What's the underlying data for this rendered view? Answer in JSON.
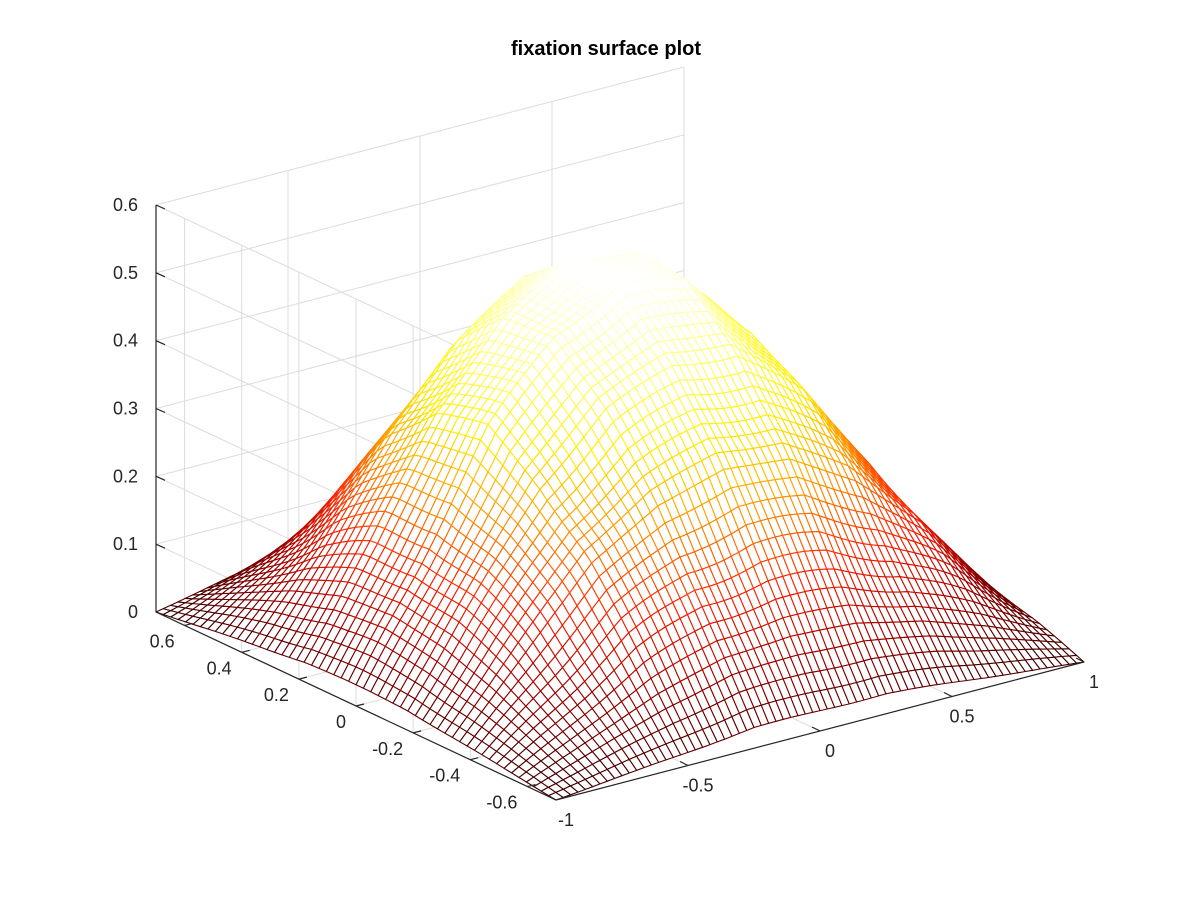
{
  "chart_data": {
    "type": "surface",
    "title": "fixation surface plot",
    "xlabel": "",
    "ylabel": "",
    "zlabel": "",
    "grid": true,
    "colormap": "hot",
    "colormap_stops": [
      "#3a0000",
      "#9e0000",
      "#ff2000",
      "#ff9000",
      "#ffee00",
      "#ffff80",
      "#ffffff"
    ],
    "xlim": [
      -1,
      1
    ],
    "ylim": [
      -0.7,
      0.7
    ],
    "zlim": [
      0,
      0.6
    ],
    "x_ticks": [
      -1,
      -0.5,
      0,
      0.5,
      1
    ],
    "x_tick_labels": [
      "-1",
      "-0.5",
      "0",
      "0.5",
      "1"
    ],
    "y_ticks": [
      -0.6,
      -0.4,
      -0.2,
      0,
      0.2,
      0.4,
      0.6
    ],
    "y_tick_labels": [
      "-0.6",
      "-0.4",
      "-0.2",
      "0",
      "0.2",
      "0.4",
      "0.6"
    ],
    "z_ticks": [
      0,
      0.1,
      0.2,
      0.3,
      0.4,
      0.5,
      0.6
    ],
    "z_tick_labels": [
      "0",
      "0.1",
      "0.2",
      "0.3",
      "0.4",
      "0.5",
      "0.6"
    ],
    "surface": {
      "x": [
        -1,
        -0.75,
        -0.5,
        -0.25,
        0,
        0.25,
        0.5,
        0.75,
        1
      ],
      "y": [
        -0.7,
        -0.525,
        -0.35,
        -0.175,
        0,
        0.175,
        0.35,
        0.525,
        0.7
      ],
      "z": [
        [
          0.0,
          0.01,
          0.02,
          0.03,
          0.03,
          0.03,
          0.02,
          0.01,
          0.0
        ],
        [
          0.01,
          0.07,
          0.13,
          0.17,
          0.18,
          0.17,
          0.14,
          0.09,
          0.03
        ],
        [
          0.02,
          0.13,
          0.24,
          0.3,
          0.33,
          0.32,
          0.26,
          0.17,
          0.05
        ],
        [
          0.03,
          0.17,
          0.31,
          0.4,
          0.44,
          0.43,
          0.35,
          0.22,
          0.06
        ],
        [
          0.03,
          0.19,
          0.36,
          0.47,
          0.52,
          0.5,
          0.4,
          0.25,
          0.07
        ],
        [
          0.03,
          0.18,
          0.35,
          0.46,
          0.52,
          0.51,
          0.42,
          0.26,
          0.07
        ],
        [
          0.02,
          0.14,
          0.28,
          0.39,
          0.46,
          0.46,
          0.38,
          0.23,
          0.06
        ],
        [
          0.01,
          0.08,
          0.16,
          0.24,
          0.29,
          0.29,
          0.24,
          0.14,
          0.04
        ],
        [
          0.0,
          0.02,
          0.04,
          0.06,
          0.07,
          0.07,
          0.06,
          0.03,
          0.01
        ]
      ]
    }
  }
}
